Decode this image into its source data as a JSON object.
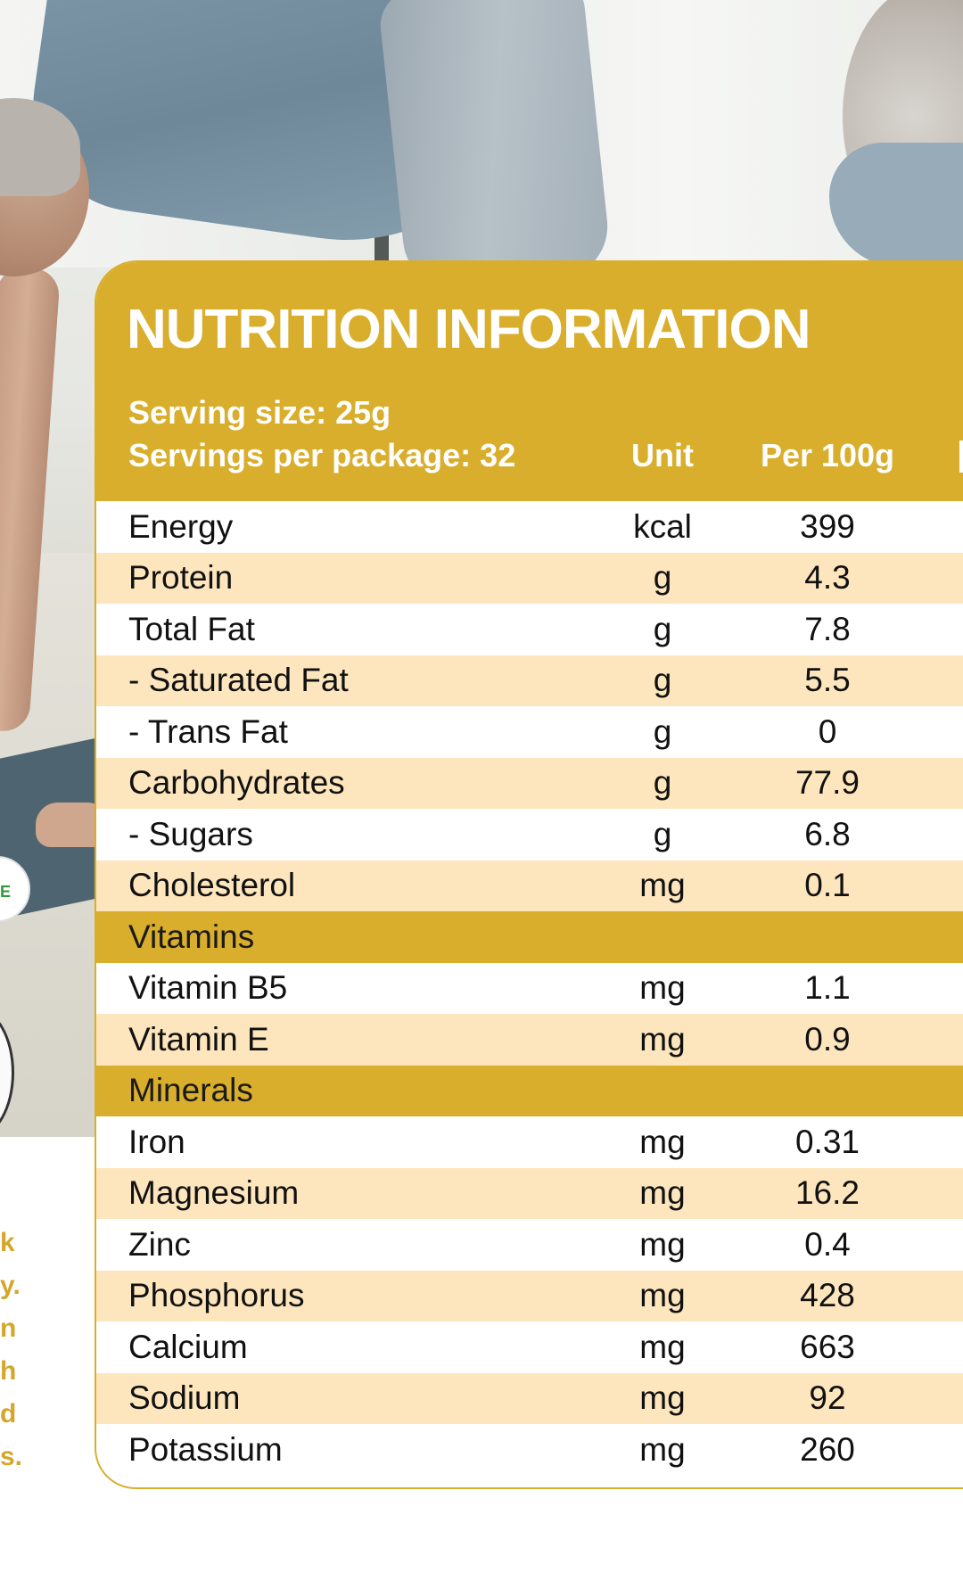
{
  "colors": {
    "accent": "#d9ae2c",
    "alt_row": "#fde6bd",
    "side_text": "#d4a72c"
  },
  "side_text": [
    "k",
    "y.",
    "n",
    "h",
    "d",
    "s."
  ],
  "badge": {
    "text": "E"
  },
  "nutrition": {
    "title": "NUTRITION INFORMATION",
    "serving_size": "Serving size: 25g",
    "servings_per_package": "Servings per package: 32",
    "columns": {
      "unit": "Unit",
      "per100": "Per 100g"
    },
    "rows": [
      {
        "label": "Energy",
        "unit": "kcal",
        "value": "399"
      },
      {
        "label": "Protein",
        "unit": "g",
        "value": "4.3"
      },
      {
        "label": "Total Fat",
        "unit": "g",
        "value": "7.8"
      },
      {
        "label": "- Saturated Fat",
        "unit": "g",
        "value": "5.5"
      },
      {
        "label": "- Trans Fat",
        "unit": "g",
        "value": "0"
      },
      {
        "label": "Carbohydrates",
        "unit": "g",
        "value": "77.9"
      },
      {
        "label": "- Sugars",
        "unit": "g",
        "value": "6.8"
      },
      {
        "label": "Cholesterol",
        "unit": "mg",
        "value": "0.1"
      },
      {
        "label": "Vitamins",
        "section": true
      },
      {
        "label": "Vitamin B5",
        "unit": "mg",
        "value": "1.1"
      },
      {
        "label": "Vitamin E",
        "unit": "mg",
        "value": "0.9"
      },
      {
        "label": "Minerals",
        "section": true
      },
      {
        "label": "Iron",
        "unit": "mg",
        "value": "0.31"
      },
      {
        "label": "Magnesium",
        "unit": "mg",
        "value": "16.2"
      },
      {
        "label": "Zinc",
        "unit": "mg",
        "value": "0.4"
      },
      {
        "label": "Phosphorus",
        "unit": "mg",
        "value": "428"
      },
      {
        "label": "Calcium",
        "unit": "mg",
        "value": "663"
      },
      {
        "label": "Sodium",
        "unit": "mg",
        "value": "92"
      },
      {
        "label": "Potassium",
        "unit": "mg",
        "value": "260"
      }
    ]
  }
}
